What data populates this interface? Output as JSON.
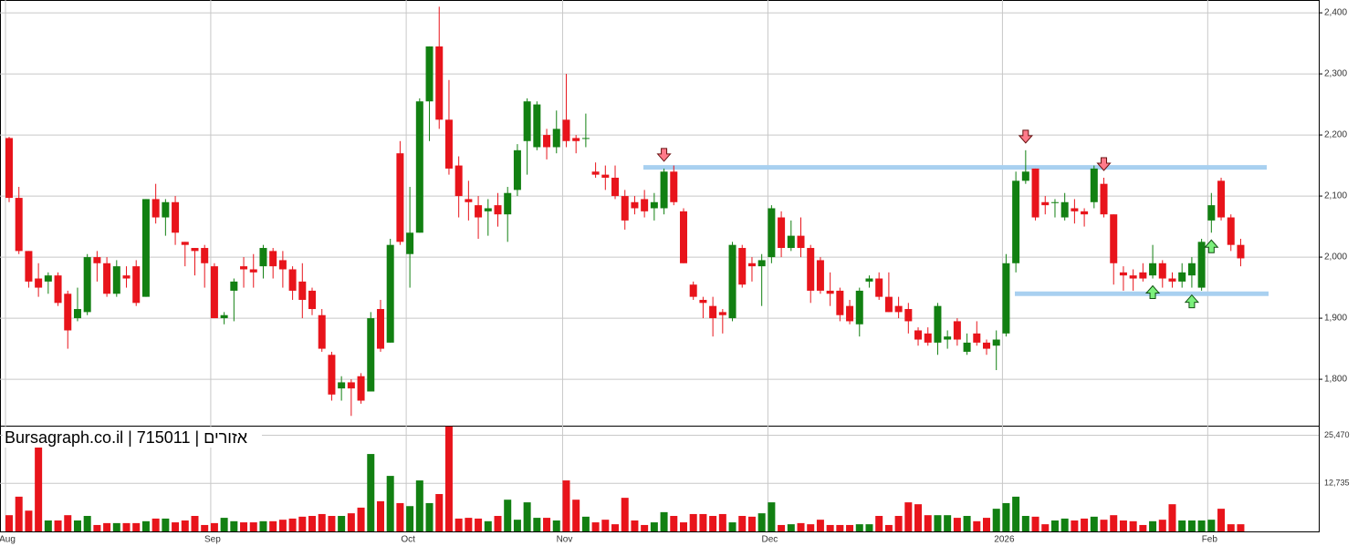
{
  "chart_data": {
    "type": "candlestick",
    "watermark": "Bursagraph.co.il | 715011 | אזורים",
    "categories": [
      "Aug",
      null,
      null,
      null,
      null,
      null,
      null,
      null,
      null,
      null,
      null,
      null,
      null,
      null,
      null,
      null,
      null,
      null,
      null,
      null,
      null,
      "Sep",
      null,
      null,
      null,
      null,
      null,
      null,
      null,
      null,
      null,
      null,
      null,
      null,
      null,
      null,
      null,
      null,
      null,
      null,
      null,
      "Oct",
      null,
      null,
      null,
      null,
      null,
      null,
      null,
      null,
      null,
      null,
      null,
      null,
      null,
      null,
      null,
      "Nov",
      null,
      null,
      null,
      null,
      null,
      null,
      null,
      null,
      null,
      null,
      null,
      null,
      null,
      null,
      null,
      null,
      null,
      null,
      null,
      null,
      "Dec",
      null,
      null,
      null,
      null,
      null,
      null,
      null,
      null,
      null,
      null,
      null,
      null,
      null,
      null,
      null,
      null,
      null,
      null,
      null,
      null,
      null,
      null,
      null,
      "2026",
      null,
      null,
      null,
      null,
      null,
      null,
      null,
      null,
      null,
      null,
      null,
      null,
      null,
      null,
      null,
      null,
      null,
      null,
      null,
      null,
      "Feb",
      null,
      null,
      null
    ],
    "open": [
      2195,
      2097,
      2010,
      1965,
      1960,
      1970,
      1940,
      1900,
      1910,
      2000,
      1990,
      1940,
      1970,
      1985,
      1935,
      2095,
      2065,
      2090,
      2025,
      2015,
      2015,
      1985,
      1900,
      1945,
      1985,
      1980,
      1985,
      2010,
      1995,
      1980,
      1960,
      1945,
      1905,
      1840,
      1785,
      1795,
      1805,
      1780,
      1915,
      1860,
      2170,
      2005,
      2040,
      2255,
      2345,
      2225,
      2150,
      2095,
      2085,
      2075,
      2085,
      2070,
      2110,
      2190,
      2180,
      2200,
      2180,
      2225,
      2195,
      2195,
      2140,
      2135,
      2130,
      2100,
      2090,
      2095,
      2080,
      2080,
      2140,
      2075,
      1955,
      1930,
      1920,
      1910,
      1900,
      2015,
      1990,
      1985,
      2000,
      2065,
      2015,
      2035,
      2015,
      1995,
      1945,
      1945,
      1920,
      1890,
      1960,
      1965,
      1935,
      1920,
      1915,
      1880,
      1875,
      1860,
      1865,
      1895,
      1845,
      1875,
      1860,
      1855,
      1875,
      1990,
      2125,
      2145,
      2090,
      2090,
      2065,
      2080,
      2075,
      2090,
      2120,
      2070,
      1975,
      1970,
      1975,
      1970,
      1990,
      1965,
      1960,
      1970,
      1950,
      2060,
      2125,
      2065,
      2020
    ],
    "high": [
      2197,
      2115,
      2010,
      1990,
      1975,
      1975,
      1945,
      1950,
      2005,
      2010,
      2000,
      1995,
      1985,
      1995,
      2095,
      2120,
      2095,
      2100,
      2025,
      2015,
      2020,
      1990,
      1910,
      1965,
      2000,
      2005,
      2020,
      2015,
      2010,
      1985,
      1990,
      1950,
      1915,
      1845,
      1805,
      1800,
      1810,
      1910,
      1930,
      2030,
      2190,
      2115,
      2260,
      2345,
      2410,
      2290,
      2165,
      2125,
      2100,
      2095,
      2105,
      2115,
      2185,
      2260,
      2255,
      2210,
      2240,
      2300,
      2200,
      2235,
      2155,
      2150,
      2150,
      2110,
      2100,
      2110,
      2105,
      2145,
      2150,
      2080,
      1960,
      1935,
      1935,
      1915,
      2025,
      2020,
      2000,
      2005,
      2085,
      2075,
      2060,
      2065,
      2020,
      2000,
      1975,
      1950,
      1930,
      1950,
      1970,
      1975,
      1975,
      1935,
      1925,
      1885,
      1885,
      1925,
      1880,
      1900,
      1875,
      1895,
      1865,
      1880,
      2005,
      2140,
      2175,
      2145,
      2100,
      2095,
      2105,
      2095,
      2080,
      2150,
      2130,
      2070,
      1985,
      1980,
      1990,
      2020,
      1995,
      1975,
      1990,
      2000,
      2030,
      2105,
      2130,
      2070,
      2030
    ],
    "low": [
      2090,
      2005,
      1950,
      1935,
      1940,
      1920,
      1850,
      1895,
      1905,
      1960,
      1935,
      1935,
      1950,
      1920,
      1935,
      2055,
      2035,
      2020,
      1985,
      1970,
      1950,
      1900,
      1890,
      1895,
      1950,
      1950,
      1965,
      1965,
      1950,
      1930,
      1900,
      1905,
      1845,
      1765,
      1765,
      1740,
      1760,
      1780,
      1845,
      1860,
      2020,
      1950,
      2040,
      2190,
      2210,
      2135,
      2065,
      2060,
      2030,
      2035,
      2050,
      2025,
      2100,
      2135,
      2175,
      2160,
      2170,
      2180,
      2170,
      2180,
      2130,
      2110,
      2095,
      2045,
      2070,
      2065,
      2060,
      2070,
      2085,
      1990,
      1930,
      1900,
      1870,
      1875,
      1895,
      1950,
      1960,
      1920,
      1990,
      2000,
      2010,
      2000,
      1925,
      1940,
      1920,
      1895,
      1890,
      1870,
      1950,
      1930,
      1910,
      1900,
      1875,
      1855,
      1855,
      1840,
      1850,
      1855,
      1840,
      1855,
      1840,
      1815,
      1870,
      1975,
      2120,
      2060,
      2070,
      2065,
      2060,
      2055,
      2050,
      2080,
      2065,
      1955,
      1945,
      1945,
      1960,
      1965,
      1950,
      1950,
      1950,
      1950,
      1945,
      2040,
      2060,
      2010,
      1985
    ],
    "close": [
      2097,
      2010,
      1960,
      1950,
      1970,
      1925,
      1880,
      1915,
      2000,
      1990,
      1940,
      1985,
      1965,
      1925,
      2095,
      2065,
      2090,
      2040,
      2020,
      2010,
      1990,
      1900,
      1905,
      1960,
      1980,
      1975,
      2015,
      1985,
      1980,
      1945,
      1930,
      1915,
      1850,
      1775,
      1795,
      1785,
      1765,
      1900,
      1850,
      2020,
      2025,
      2040,
      2255,
      2345,
      2225,
      2145,
      2100,
      2090,
      2065,
      2080,
      2070,
      2105,
      2175,
      2255,
      2250,
      2180,
      2210,
      2190,
      2190,
      2195,
      2135,
      2130,
      2100,
      2060,
      2080,
      2075,
      2090,
      2140,
      2090,
      1990,
      1935,
      1925,
      1900,
      1905,
      2020,
      1955,
      1985,
      1995,
      2080,
      2015,
      2035,
      2015,
      1945,
      1945,
      1940,
      1905,
      1895,
      1945,
      1965,
      1935,
      1910,
      1910,
      1895,
      1865,
      1860,
      1920,
      1870,
      1865,
      1860,
      1860,
      1850,
      1865,
      1990,
      2125,
      2140,
      2065,
      2085,
      2090,
      2090,
      2075,
      2070,
      2145,
      2070,
      1990,
      1970,
      1965,
      1965,
      1990,
      1965,
      1960,
      1975,
      1990,
      2025,
      2085,
      2065,
      2020,
      1998
    ],
    "volume": [
      4300,
      9200,
      5500,
      22400,
      2900,
      2900,
      4300,
      2900,
      4100,
      1700,
      2200,
      2200,
      2200,
      2200,
      2700,
      3400,
      3400,
      2400,
      2900,
      4100,
      1700,
      2200,
      3600,
      2700,
      2400,
      2400,
      2700,
      2700,
      3100,
      3400,
      3900,
      4100,
      4600,
      4100,
      4100,
      4800,
      6300,
      20500,
      8000,
      14700,
      7500,
      6700,
      13500,
      7500,
      9900,
      27800,
      3400,
      3600,
      3400,
      2700,
      4100,
      8400,
      3100,
      7700,
      3600,
      3600,
      2900,
      13500,
      8400,
      3900,
      2400,
      3100,
      1900,
      8900,
      2900,
      1700,
      2400,
      5100,
      4100,
      2400,
      4600,
      4600,
      4100,
      4600,
      2400,
      4100,
      3900,
      4800,
      7700,
      1700,
      1900,
      2200,
      1900,
      3100,
      1700,
      1700,
      1700,
      1900,
      1900,
      4100,
      1700,
      4100,
      7700,
      7200,
      4300,
      4300,
      4300,
      3600,
      4100,
      2700,
      3600,
      6000,
      7500,
      9200,
      4100,
      3900,
      1900,
      2900,
      3400,
      2900,
      3400,
      3900,
      3100,
      4300,
      2900,
      2700,
      1700,
      2700,
      3100,
      7200,
      2900,
      2900,
      2900,
      3100,
      6000,
      1900,
      1900
    ],
    "up_color": "#128012",
    "down_color": "#e8141b",
    "ylim": [
      1724,
      2421
    ],
    "yticks": [
      {
        "value": 1800,
        "label": "1,800"
      },
      {
        "value": 1900,
        "label": "1,900"
      },
      {
        "value": 2000,
        "label": "2,000"
      },
      {
        "value": 2100,
        "label": "2,100"
      },
      {
        "value": 2200,
        "label": "2,200"
      },
      {
        "value": 2300,
        "label": "2,300"
      },
      {
        "value": 2400,
        "label": "2,400"
      }
    ],
    "volume_ylim": [
      0,
      28000
    ],
    "volume_yticks": [
      {
        "value": 12735,
        "label": "12,735"
      },
      {
        "value": 25470,
        "label": "25,470"
      }
    ],
    "levels": [
      2147,
      1940
    ],
    "level_color": "#a8d0f0",
    "signals": [
      {
        "index": 67,
        "direction": "down"
      },
      {
        "index": 104,
        "direction": "down"
      },
      {
        "index": 112,
        "direction": "down"
      },
      {
        "index": 117,
        "direction": "up"
      },
      {
        "index": 121,
        "direction": "up"
      },
      {
        "index": 123,
        "direction": "up"
      }
    ],
    "grid": true
  }
}
